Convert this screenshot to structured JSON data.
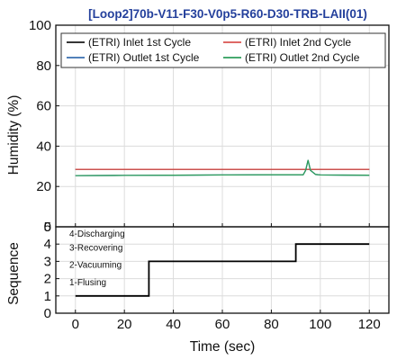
{
  "chart_data": [
    {
      "type": "line",
      "title": "[Loop2]70b-V11-F30-V0p5-R60-D30-TRB-LAII(01)",
      "title_color": "#24409c",
      "xlabel": "",
      "ylabel": "Humidity (%)",
      "xlim": [
        -8,
        128
      ],
      "ylim": [
        0,
        100
      ],
      "x_ticks": [
        0,
        20,
        40,
        60,
        80,
        100,
        120
      ],
      "y_ticks": [
        0,
        20,
        40,
        60,
        80,
        100
      ],
      "grid": true,
      "legend_position": "top",
      "series": [
        {
          "name": "(ETRI) Inlet 1st Cycle",
          "color": "#1a1a1a",
          "x": [
            0,
            120
          ],
          "y": [
            28.5,
            28.5
          ]
        },
        {
          "name": "(ETRI) Inlet 2nd Cycle",
          "color": "#d9534f",
          "x": [
            0,
            120
          ],
          "y": [
            28.5,
            28.5
          ]
        },
        {
          "name": "(ETRI) Outlet 1st Cycle",
          "color": "#3a6fb0",
          "x": [
            0,
            20,
            40,
            60,
            80,
            93,
            94,
            95,
            96,
            98,
            100,
            120
          ],
          "y": [
            25.4,
            25.5,
            25.6,
            25.7,
            25.8,
            25.8,
            28.0,
            33.0,
            28.0,
            26.0,
            25.7,
            25.6
          ]
        },
        {
          "name": "(ETRI) Outlet 2nd Cycle",
          "color": "#2e9e5b",
          "x": [
            0,
            20,
            40,
            60,
            80,
            93,
            94,
            95,
            96,
            98,
            100,
            120
          ],
          "y": [
            25.4,
            25.5,
            25.6,
            25.7,
            25.8,
            25.8,
            28.0,
            33.0,
            28.0,
            26.0,
            25.7,
            25.6
          ]
        }
      ]
    },
    {
      "type": "line",
      "xlabel": "Time (sec)",
      "ylabel": "Sequence",
      "xlim": [
        -8,
        128
      ],
      "ylim": [
        0,
        5
      ],
      "x_ticks": [
        0,
        20,
        40,
        60,
        80,
        100,
        120
      ],
      "y_ticks": [
        0,
        1,
        2,
        3,
        4,
        5
      ],
      "grid": true,
      "phase_labels": [
        "4-Discharging",
        "3-Recovering",
        "2-Vacuuming",
        "1-Flusing"
      ],
      "series": [
        {
          "color": "#000000",
          "x": [
            0,
            30,
            30,
            90,
            90,
            120
          ],
          "y": [
            1,
            1,
            3,
            3,
            4,
            4
          ]
        }
      ]
    }
  ]
}
